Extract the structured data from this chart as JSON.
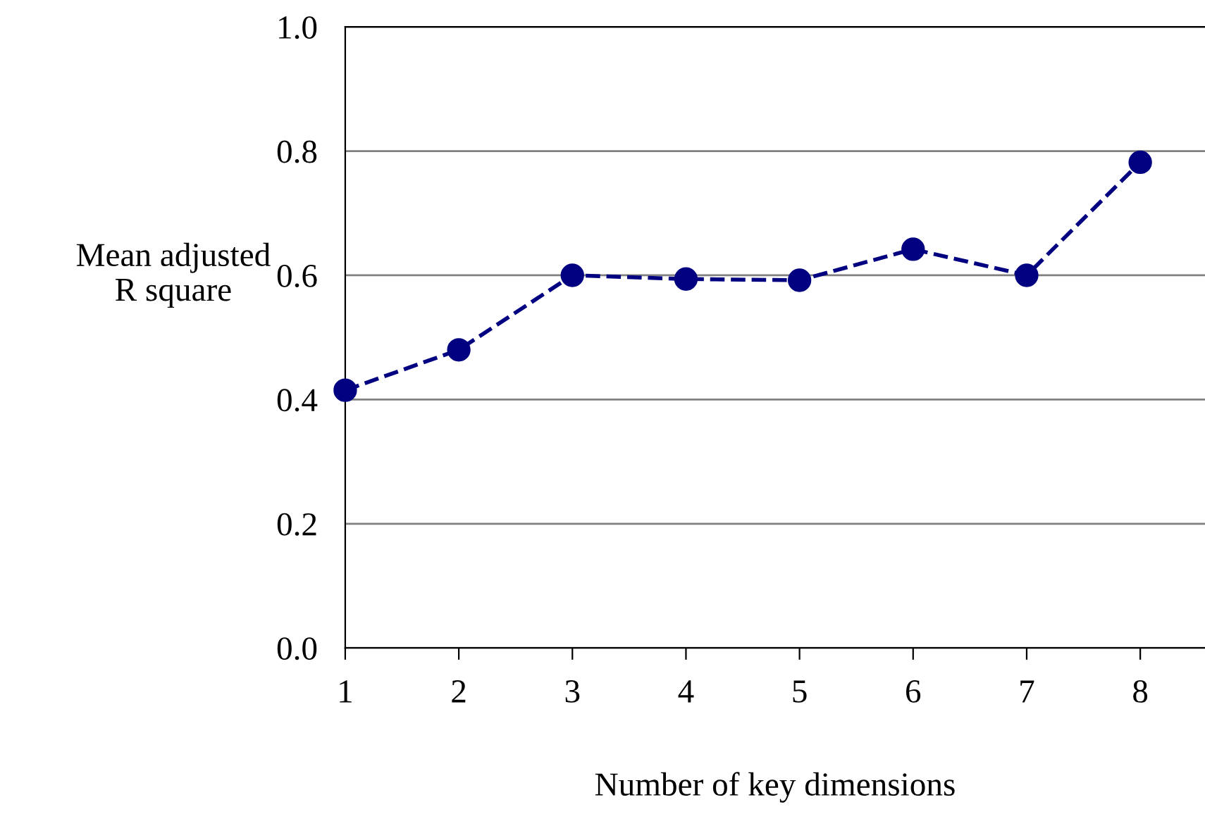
{
  "chart_data": {
    "type": "line",
    "xlabel": "Number of key dimensions",
    "ylabel": "Mean adjusted\nR square",
    "x": [
      1,
      2,
      3,
      4,
      5,
      6,
      7,
      8
    ],
    "series": [
      {
        "color": "#000080",
        "values": [
          0.415,
          0.48,
          0.6,
          0.594,
          0.592,
          0.642,
          0.6,
          0.782
        ]
      }
    ],
    "xlim": [
      1,
      8.57
    ],
    "xticks": [
      1,
      2,
      3,
      4,
      5,
      6,
      7,
      8
    ],
    "ylim": [
      0,
      1
    ],
    "yticks": [
      {
        "value": 0,
        "label": "0.0"
      },
      {
        "value": 0.2,
        "label": "0.2"
      },
      {
        "value": 0.4,
        "label": "0.4"
      },
      {
        "value": 0.6,
        "label": "0.6"
      },
      {
        "value": 0.8,
        "label": "0.8"
      },
      {
        "value": 1,
        "label": "1.0"
      }
    ],
    "grid": "y",
    "marker": "circle",
    "line_style": "dashed"
  }
}
